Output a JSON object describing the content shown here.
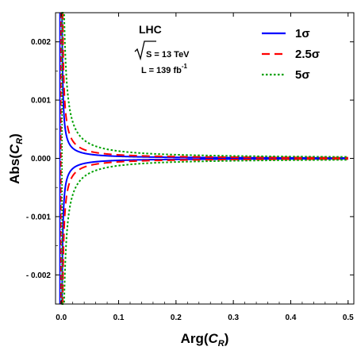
{
  "chart_data": {
    "type": "line",
    "xlabel": "Arg(C_R)",
    "ylabel": "Abs(C_R)",
    "xlim": [
      -0.01,
      0.51
    ],
    "ylim": [
      -0.0025,
      0.0025
    ],
    "x_ticks": [
      {
        "value": 0.0,
        "label": "0.0"
      },
      {
        "value": 0.1,
        "label": "0.1"
      },
      {
        "value": 0.2,
        "label": "0.2"
      },
      {
        "value": 0.3,
        "label": "0.3"
      },
      {
        "value": 0.4,
        "label": "0.4"
      },
      {
        "value": 0.5,
        "label": "0.5"
      }
    ],
    "y_ticks": [
      {
        "value": 0.002,
        "label": "0.002"
      },
      {
        "value": 0.001,
        "label": "0.001"
      },
      {
        "value": 0.0,
        "label": "0.000"
      },
      {
        "value": -0.001,
        "label": "- 0.001"
      },
      {
        "value": -0.002,
        "label": "- 0.002"
      }
    ],
    "annotation": {
      "collider": "LHC",
      "energy": "S = 13 TeV",
      "luminosity": "L = 139 fb",
      "luminosity_exp": "-1"
    },
    "series": [
      {
        "name": "1σ",
        "color": "#0000ff",
        "dash": "solid",
        "k": 3.5e-06
      },
      {
        "name": "2.5σ",
        "color": "#ff0000",
        "dash": "dashed",
        "k": 6e-06
      },
      {
        "name": "5σ",
        "color": "#00a000",
        "dash": "dotted",
        "k": 1.25e-05
      }
    ],
    "shape": "Abs = ± k / Arg (two symmetric branches per series)",
    "grid": false,
    "legend_position": "top-right"
  }
}
